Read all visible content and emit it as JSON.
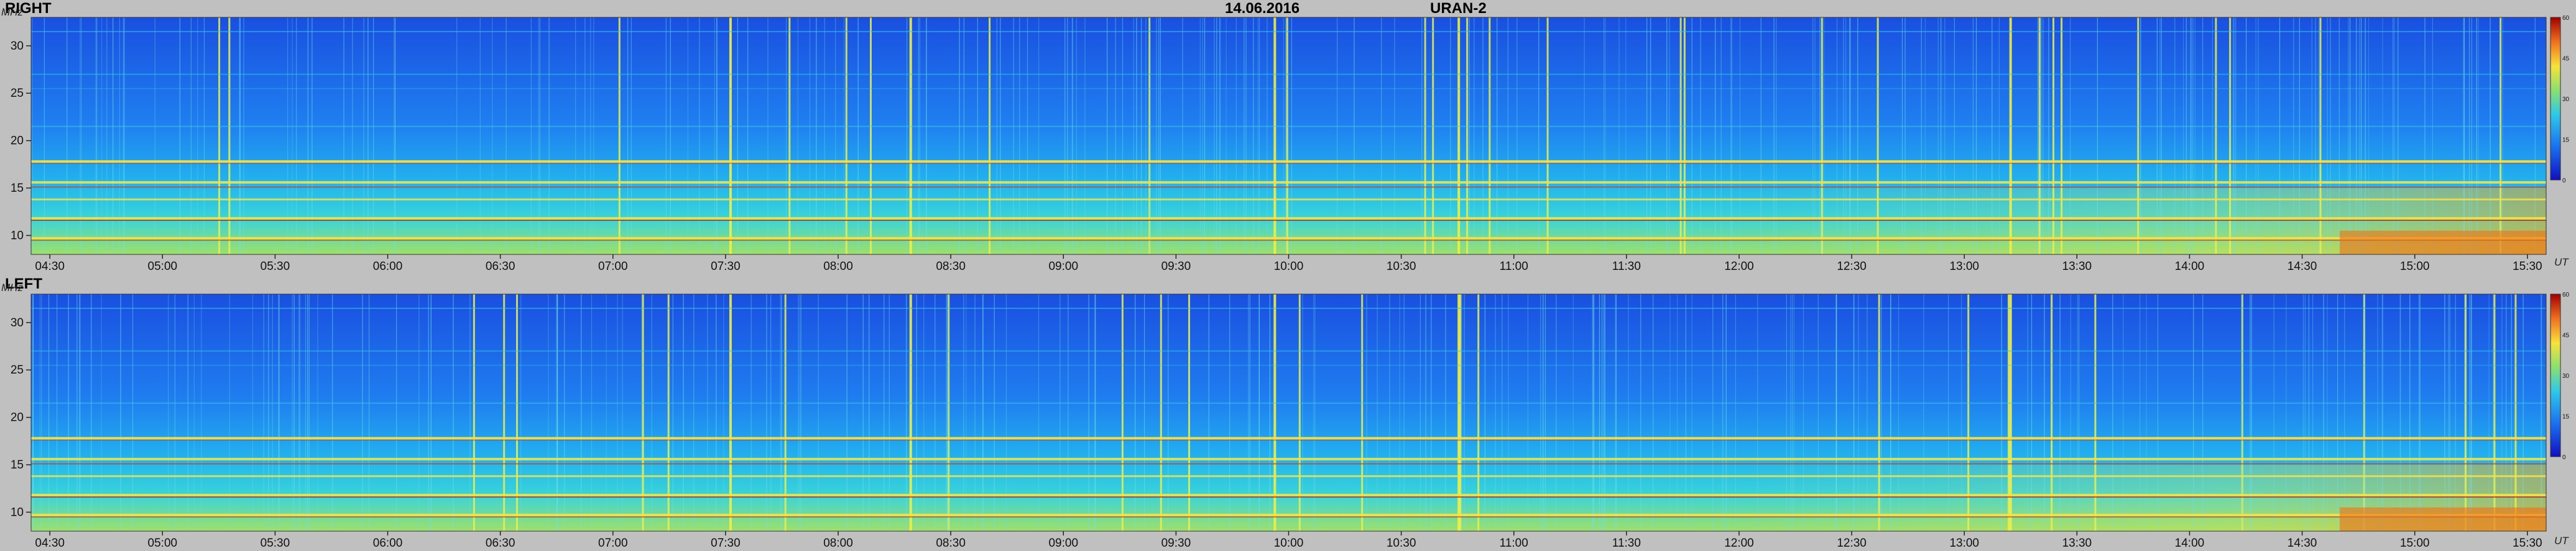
{
  "header": {
    "date": "14.06.2016",
    "instrument": "URAN-2"
  },
  "chart_data": [
    {
      "type": "heatmap",
      "title": "RIGHT",
      "ylabel": "MHz",
      "xlabel": "UT",
      "y_ticks": [
        10,
        15,
        20,
        25,
        30
      ],
      "ylim": [
        8,
        33
      ],
      "x_ticks": [
        "04:30",
        "05:00",
        "05:30",
        "06:00",
        "06:30",
        "07:00",
        "07:30",
        "08:00",
        "08:30",
        "09:00",
        "09:30",
        "10:00",
        "10:30",
        "11:00",
        "11:30",
        "12:00",
        "12:30",
        "13:00",
        "13:30",
        "14:00",
        "14:30",
        "15:00",
        "15:30"
      ],
      "xlim": [
        "04:25",
        "15:35"
      ],
      "colorbar": {
        "ticks": [
          0,
          15,
          30,
          45,
          60
        ],
        "min": 0,
        "max": 60
      },
      "colors": {
        "low": "#1a4fe0",
        "mid": "#2ec8e8",
        "high": "#f7e23a",
        "max": "#d01010"
      }
    },
    {
      "type": "heatmap",
      "title": "LEFT",
      "ylabel": "MHz",
      "xlabel": "UT",
      "y_ticks": [
        10,
        15,
        20,
        25,
        30
      ],
      "ylim": [
        8,
        33
      ],
      "x_ticks": [
        "04:30",
        "05:00",
        "05:30",
        "06:00",
        "06:30",
        "07:00",
        "07:30",
        "08:00",
        "08:30",
        "09:00",
        "09:30",
        "10:00",
        "10:30",
        "11:00",
        "11:30",
        "12:00",
        "12:30",
        "13:00",
        "13:30",
        "14:00",
        "14:30",
        "15:00",
        "15:30"
      ],
      "xlim": [
        "04:25",
        "15:35"
      ],
      "colorbar": {
        "ticks": [
          0,
          15,
          30,
          45,
          60
        ],
        "min": 0,
        "max": 60
      },
      "colors": {
        "low": "#1a4fe0",
        "mid": "#2ec8e8",
        "high": "#f7e23a",
        "max": "#d01010"
      }
    }
  ]
}
